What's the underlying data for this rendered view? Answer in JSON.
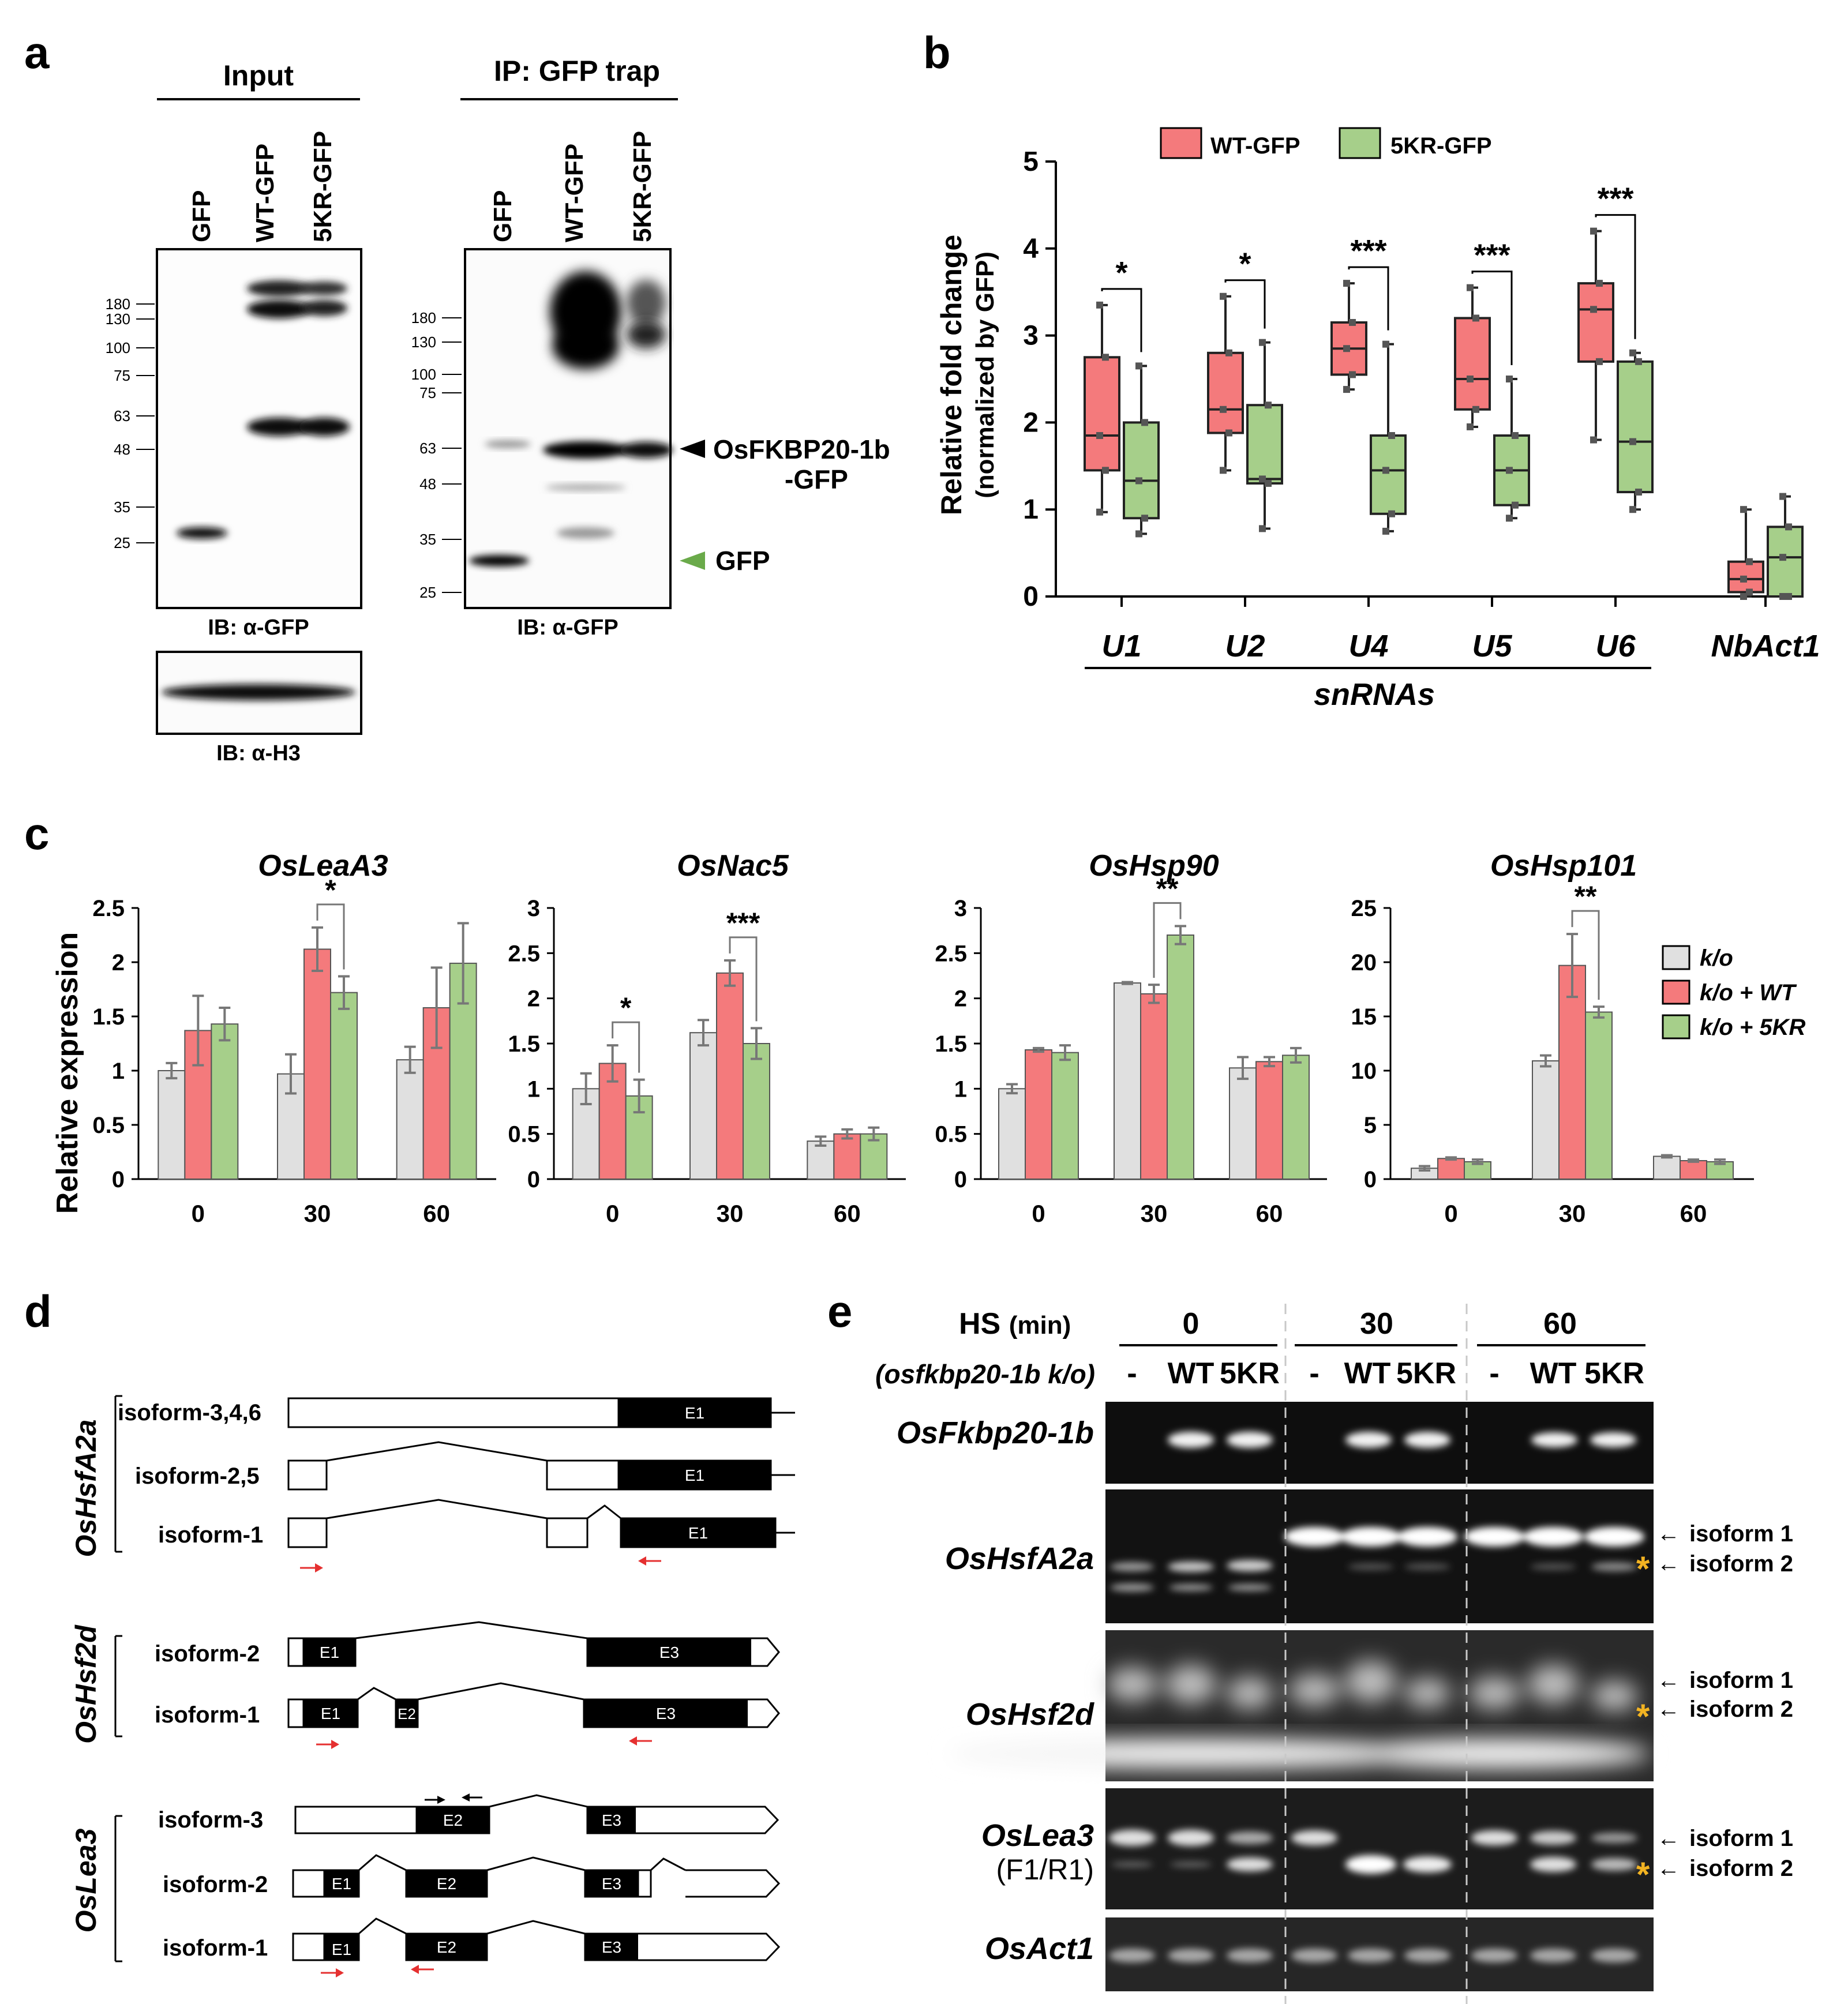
{
  "panel_a": {
    "letter": "a",
    "input_header": "Input",
    "ip_header": "IP: GFP trap",
    "lanes": [
      "GFP",
      "WT-GFP",
      "5KR-GFP"
    ],
    "markers_input": [
      "180",
      "130",
      "100",
      "75",
      "63",
      "48",
      "35",
      "25"
    ],
    "markers_ip": [
      "180",
      "130",
      "100",
      "75",
      "63",
      "48",
      "35",
      "25"
    ],
    "ib_gfp": "IB: α-GFP",
    "ib_h3": "IB: α-H3",
    "ib_gfp_ip": "IB: α-GFP",
    "arrow_label_1": "OsFKBP20-1b",
    "arrow_label_2": "-GFP",
    "gfp_arrow_label": "GFP",
    "gfp_arrow_color": "#6aaa4a"
  },
  "panel_b": {
    "letter": "b",
    "legend": [
      "WT-GFP",
      "5KR-GFP"
    ],
    "ylabel_1": "Relative fold change",
    "ylabel_2": "(normalized by GFP)",
    "group_label": "snRNAs",
    "colors": {
      "wt": "#f47a7c",
      "kr": "#a6cf8a"
    },
    "chart_data": {
      "type": "box",
      "categories": [
        "U1",
        "U2",
        "U4",
        "U5",
        "U6",
        "NbAct1"
      ],
      "yticks": [
        "0",
        "1",
        "2",
        "3",
        "4",
        "5"
      ],
      "ylim": [
        0,
        5
      ],
      "significance": [
        "*",
        "*",
        "***",
        "***",
        "***",
        ""
      ],
      "series": [
        {
          "name": "WT-GFP",
          "boxes": [
            {
              "min": 0.97,
              "q1": 1.45,
              "median": 1.85,
              "q3": 2.75,
              "max": 3.35
            },
            {
              "min": 1.45,
              "q1": 1.88,
              "median": 2.15,
              "q3": 2.8,
              "max": 3.45
            },
            {
              "min": 2.38,
              "q1": 2.55,
              "median": 2.85,
              "q3": 3.15,
              "max": 3.6
            },
            {
              "min": 1.95,
              "q1": 2.15,
              "median": 2.5,
              "q3": 3.2,
              "max": 3.55
            },
            {
              "min": 1.8,
              "q1": 2.7,
              "median": 3.3,
              "q3": 3.6,
              "max": 4.2
            },
            {
              "min": 0.0,
              "q1": 0.05,
              "median": 0.2,
              "q3": 0.4,
              "max": 1.0
            }
          ]
        },
        {
          "name": "5KR-GFP",
          "boxes": [
            {
              "min": 0.72,
              "q1": 0.9,
              "median": 1.33,
              "q3": 2.0,
              "max": 2.65
            },
            {
              "min": 0.78,
              "q1": 1.3,
              "median": 1.35,
              "q3": 2.2,
              "max": 2.92
            },
            {
              "min": 0.75,
              "q1": 0.95,
              "median": 1.45,
              "q3": 1.85,
              "max": 2.9
            },
            {
              "min": 0.9,
              "q1": 1.05,
              "median": 1.45,
              "q3": 1.85,
              "max": 2.5
            },
            {
              "min": 1.0,
              "q1": 1.2,
              "median": 1.78,
              "q3": 2.7,
              "max": 2.8
            },
            {
              "min": 0.0,
              "q1": 0.0,
              "median": 0.45,
              "q3": 0.8,
              "max": 1.15
            }
          ]
        }
      ]
    }
  },
  "panel_c": {
    "letter": "c",
    "ylabel": "Relative expression",
    "legend": [
      "k/o",
      "k/o + WT",
      "k/o + 5KR"
    ],
    "colors": {
      "ko": "#e0e0e0",
      "wt": "#f47a7c",
      "kr": "#a6cf8a"
    },
    "chart_data": [
      {
        "type": "bar",
        "title": "OsLeaA3",
        "categories": [
          "0",
          "30",
          "60"
        ],
        "yticks": [
          "0",
          "0.5",
          "1",
          "1.5",
          "2",
          "2.5"
        ],
        "ylim": [
          0,
          2.5
        ],
        "series": [
          {
            "name": "k/o",
            "values": [
              1.0,
              0.97,
              1.1
            ],
            "err": [
              0.07,
              0.18,
              0.12
            ]
          },
          {
            "name": "k/o + WT",
            "values": [
              1.37,
              2.12,
              1.58
            ],
            "err": [
              0.32,
              0.2,
              0.37
            ]
          },
          {
            "name": "k/o + 5KR",
            "values": [
              1.43,
              1.72,
              1.99
            ],
            "err": [
              0.15,
              0.15,
              0.37
            ]
          }
        ],
        "significance": [
          {
            "category": "30",
            "label": "*"
          }
        ]
      },
      {
        "type": "bar",
        "title": "OsNac5",
        "categories": [
          "0",
          "30",
          "60"
        ],
        "yticks": [
          "0",
          "0.5",
          "1",
          "1.5",
          "2",
          "2.5",
          "3"
        ],
        "ylim": [
          0,
          3
        ],
        "series": [
          {
            "name": "k/o",
            "values": [
              1.0,
              1.62,
              0.42
            ],
            "err": [
              0.17,
              0.14,
              0.05
            ]
          },
          {
            "name": "k/o + WT",
            "values": [
              1.28,
              2.28,
              0.5
            ],
            "err": [
              0.2,
              0.14,
              0.05
            ]
          },
          {
            "name": "k/o + 5KR",
            "values": [
              0.92,
              1.5,
              0.5
            ],
            "err": [
              0.18,
              0.17,
              0.07
            ]
          }
        ],
        "significance": [
          {
            "category": "0",
            "label": "*"
          },
          {
            "category": "30",
            "label": "***"
          }
        ]
      },
      {
        "type": "bar",
        "title": "OsHsp90",
        "categories": [
          "0",
          "30",
          "60"
        ],
        "yticks": [
          "0",
          "0.5",
          "1",
          "1.5",
          "2",
          "2.5",
          "3"
        ],
        "ylim": [
          0,
          3
        ],
        "series": [
          {
            "name": "k/o",
            "values": [
              1.0,
              2.17,
              1.23
            ],
            "err": [
              0.05,
              0.01,
              0.12
            ]
          },
          {
            "name": "k/o + WT",
            "values": [
              1.43,
              2.05,
              1.3
            ],
            "err": [
              0.02,
              0.1,
              0.05
            ]
          },
          {
            "name": "k/o + 5KR",
            "values": [
              1.4,
              2.7,
              1.37
            ],
            "err": [
              0.08,
              0.1,
              0.08
            ]
          }
        ],
        "significance": [
          {
            "category": "30",
            "label": "**"
          }
        ]
      },
      {
        "type": "bar",
        "title": "OsHsp101",
        "categories": [
          "0",
          "30",
          "60"
        ],
        "yticks": [
          "0",
          "5",
          "10",
          "15",
          "20",
          "25"
        ],
        "ylim": [
          0,
          25
        ],
        "series": [
          {
            "name": "k/o",
            "values": [
              1.0,
              10.9,
              2.1
            ],
            "err": [
              0.2,
              0.5,
              0.1
            ]
          },
          {
            "name": "k/o + WT",
            "values": [
              1.9,
              19.7,
              1.7
            ],
            "err": [
              0.1,
              2.9,
              0.1
            ]
          },
          {
            "name": "k/o + 5KR",
            "values": [
              1.6,
              15.4,
              1.6
            ],
            "err": [
              0.2,
              0.5,
              0.2
            ]
          }
        ],
        "significance": [
          {
            "category": "30",
            "label": "**"
          }
        ]
      }
    ]
  },
  "panel_d": {
    "letter": "d",
    "genes": [
      {
        "name": "OsHsfA2a",
        "isoforms": [
          "isoform-3,4,6",
          "isoform-2,5",
          "isoform-1"
        ]
      },
      {
        "name": "OsHsf2d",
        "isoforms": [
          "isoform-2",
          "isoform-1"
        ]
      },
      {
        "name": "OsLea3",
        "isoforms": [
          "isoform-3",
          "isoform-2",
          "isoform-1"
        ]
      }
    ],
    "exons": {
      "e1": "E1",
      "e2": "E2",
      "e3": "E3"
    },
    "primer_arrow_color": "#e53030"
  },
  "panel_e": {
    "letter": "e",
    "hs": "HS",
    "hs_unit": "(min)",
    "timepoints": [
      "0",
      "30",
      "60"
    ],
    "genotype_label": "(osfkbp20-1b k/o)",
    "lane_labels": [
      "-",
      "WT",
      "5KR"
    ],
    "gels": [
      "OsFkbp20-1b",
      "OsHsfA2a",
      "OsHsf2d",
      "OsLea3",
      "OsAct1"
    ],
    "lea3_primer": "(F1/R1)",
    "isoform_1": "isoform 1",
    "isoform_2": "isoform 2",
    "asterisk": "*",
    "asterisk_color": "#f2b322"
  }
}
